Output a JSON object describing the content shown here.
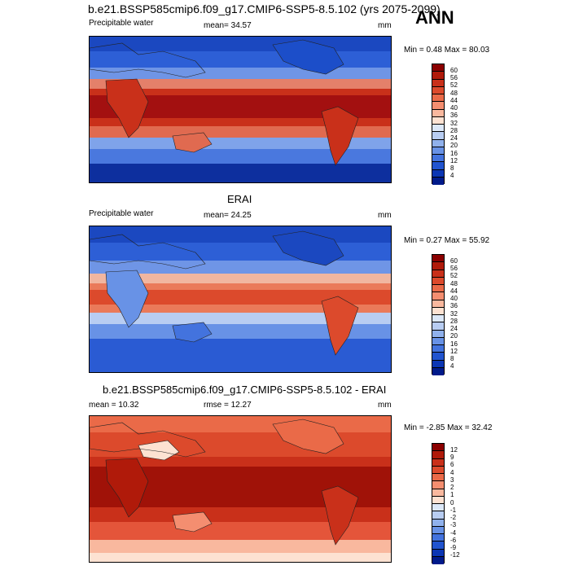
{
  "header": {
    "title": "b.e21.BSSP585cmip6.f09_g17.CMIP6-SSP5-8.5.102 (yrs 2075-2099)",
    "season": "ANN"
  },
  "panels": [
    {
      "title": "",
      "variable": "Precipitable water",
      "mean_text": "mean=  34.57",
      "rmse_text": "",
      "units": "mm",
      "minmax_text": "Min =   0.48 Max =  80.03",
      "colorbar": {
        "labels": [
          "60",
          "56",
          "52",
          "48",
          "44",
          "40",
          "36",
          "32",
          "28",
          "24",
          "20",
          "16",
          "12",
          "8",
          "4"
        ],
        "colors": [
          "#8b0000",
          "#b01a0a",
          "#c9301a",
          "#dc4a2c",
          "#ea6a48",
          "#f48e70",
          "#f9b89e",
          "#fde2d2",
          "#dce8f8",
          "#b8cdf2",
          "#90b1ec",
          "#6892e6",
          "#4373de",
          "#2154cf",
          "#0b36b4",
          "#001a8a"
        ]
      }
    },
    {
      "title": "ERAI",
      "variable": "Precipitable water",
      "mean_text": "mean=  24.25",
      "rmse_text": "",
      "units": "mm",
      "minmax_text": "Min =   0.27 Max =  55.92",
      "colorbar": {
        "labels": [
          "60",
          "56",
          "52",
          "48",
          "44",
          "40",
          "36",
          "32",
          "28",
          "24",
          "20",
          "16",
          "12",
          "8",
          "4"
        ],
        "colors": [
          "#8b0000",
          "#b01a0a",
          "#c9301a",
          "#dc4a2c",
          "#ea6a48",
          "#f48e70",
          "#f9b89e",
          "#fde2d2",
          "#dce8f8",
          "#b8cdf2",
          "#90b1ec",
          "#6892e6",
          "#4373de",
          "#2154cf",
          "#0b36b4",
          "#001a8a"
        ]
      }
    },
    {
      "title": "b.e21.BSSP585cmip6.f09_g17.CMIP6-SSP5-8.5.102 - ERAI",
      "variable": "",
      "mean_text": "mean =  10.32",
      "rmse_text": "rmse =  12.27",
      "units": "mm",
      "minmax_text": "Min =  -2.85 Max =  32.42",
      "colorbar": {
        "labels": [
          "12",
          "9",
          "6",
          "4",
          "3",
          "2",
          "1",
          "0",
          "-1",
          "-2",
          "-3",
          "-4",
          "-6",
          "-9",
          "-12"
        ],
        "colors": [
          "#8b0000",
          "#b01a0a",
          "#c9301a",
          "#dc4a2c",
          "#ea6a48",
          "#f48e70",
          "#f9b89e",
          "#fde2d2",
          "#dce8f8",
          "#b8cdf2",
          "#90b1ec",
          "#6892e6",
          "#4373de",
          "#2154cf",
          "#0b36b4",
          "#001a8a"
        ]
      }
    }
  ]
}
